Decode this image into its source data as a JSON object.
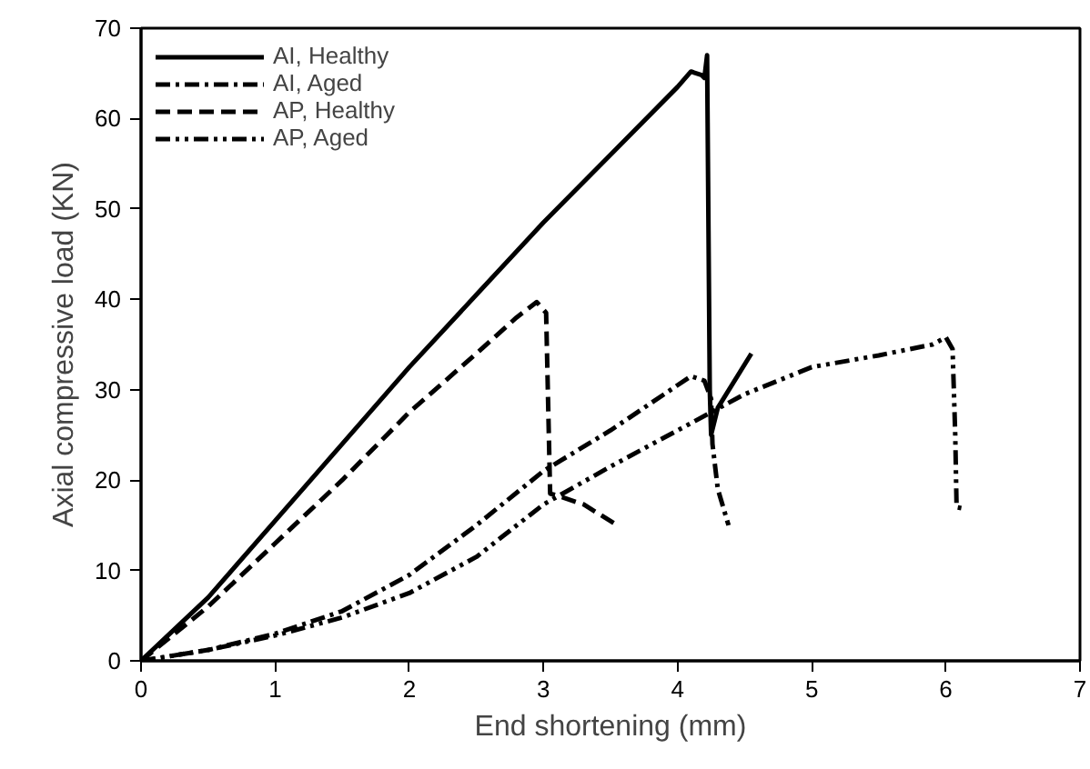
{
  "chart_data": {
    "type": "line",
    "xlabel": "End shortening (mm)",
    "ylabel": "Axial compressive load (KN)",
    "xlim": [
      0,
      7
    ],
    "ylim": [
      0,
      70
    ],
    "xticks": [
      0,
      1,
      2,
      3,
      4,
      5,
      6,
      7
    ],
    "yticks": [
      0,
      10,
      20,
      30,
      40,
      50,
      60,
      70
    ],
    "grid": false,
    "legend": "top left",
    "marker": "none",
    "series": [
      {
        "name": "AI, Healthy",
        "color": "#000000",
        "line_style": "solid",
        "x": [
          0,
          0.5,
          1,
          1.5,
          2,
          2.5,
          3,
          3.5,
          4,
          4.1,
          4.18,
          4.2,
          4.22,
          4.24,
          4.25,
          4.3,
          4.55
        ],
        "values": [
          0,
          7,
          15.5,
          24,
          32.5,
          40.5,
          48.5,
          56,
          63.5,
          65.2,
          64.8,
          64.5,
          67,
          30,
          25,
          28,
          34
        ]
      },
      {
        "name": "AI, Aged",
        "color": "#000000",
        "line_style": "dashdot",
        "x": [
          0,
          0.5,
          1,
          1.5,
          2,
          2.5,
          3,
          3.5,
          4,
          4.1,
          4.2,
          4.25,
          4.26,
          4.3,
          4.38
        ],
        "values": [
          0,
          1.2,
          3,
          5.5,
          9.5,
          15,
          21,
          25.5,
          30.5,
          31.5,
          31,
          29,
          24,
          19,
          15
        ]
      },
      {
        "name": "AP, Healthy",
        "color": "#000000",
        "line_style": "dashed",
        "x": [
          0,
          0.5,
          1,
          1.5,
          2,
          2.5,
          2.8,
          2.95,
          3.02,
          3.05,
          3.1,
          3.3,
          3.55
        ],
        "values": [
          0,
          6,
          13,
          20,
          27.5,
          34,
          38,
          39.7,
          38.5,
          18.5,
          18.3,
          17.3,
          15
        ]
      },
      {
        "name": "AP, Aged",
        "color": "#000000",
        "line_style": "dashdotdot",
        "x": [
          0,
          0.5,
          1,
          1.5,
          2,
          2.5,
          3,
          3.5,
          4,
          4.5,
          5,
          5.5,
          5.9,
          6.0,
          6.05,
          6.07,
          6.08,
          6.15
        ],
        "values": [
          0,
          1.2,
          2.8,
          4.8,
          7.5,
          11.5,
          17.3,
          21.5,
          25.5,
          29.5,
          32.5,
          33.8,
          35,
          35.8,
          34.5,
          25,
          17,
          16.8
        ]
      }
    ]
  }
}
